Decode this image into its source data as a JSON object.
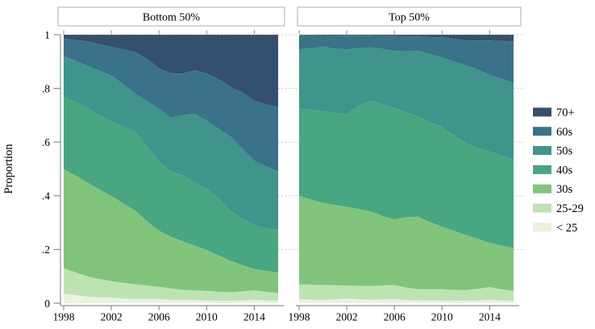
{
  "figure": {
    "kind": "two-panel stacked area chart",
    "background": "#ffffff",
    "axis_color": "#8f8f8f",
    "grid_color": "#bdbdbd",
    "panel_border_color": "#aeaeae"
  },
  "chart_data": {
    "type": "area",
    "stacked": true,
    "ylabel": "Proportion",
    "x": [
      1998,
      1999,
      2000,
      2001,
      2002,
      2003,
      2004,
      2005,
      2006,
      2007,
      2008,
      2009,
      2010,
      2011,
      2012,
      2013,
      2014,
      2015,
      2016
    ],
    "xticks": [
      1998,
      2002,
      2006,
      2010,
      2014
    ],
    "xtick_labels": [
      "1998",
      "2002",
      "2006",
      "2010",
      "2014"
    ],
    "yticks": [
      0,
      0.2,
      0.4,
      0.6,
      0.8,
      1
    ],
    "ytick_labels": [
      "0",
      ".2",
      ".4",
      ".6",
      ".8",
      "1"
    ],
    "ylim": [
      0,
      1
    ],
    "grid": "horizontal-dotted",
    "legend_position": "right-outside",
    "legend_top_to_bottom": [
      "70+",
      "60s",
      "50s",
      "40s",
      "30s",
      "25-29",
      "< 25"
    ],
    "colors": {
      "70+": "#35506e",
      "60s": "#3a7289",
      "50s": "#3f948c",
      "40s": "#48a681",
      "30s": "#80c47c",
      "25-29": "#bee3b3",
      "< 25": "#e9f3de"
    },
    "panels": [
      {
        "title": "Bottom 50%",
        "series": [
          {
            "name": "< 25",
            "values": [
              0.035,
              0.03,
              0.025,
              0.022,
              0.02,
              0.018,
              0.016,
              0.016,
              0.016,
              0.013,
              0.012,
              0.011,
              0.01,
              0.009,
              0.009,
              0.01,
              0.012,
              0.01,
              0.009
            ]
          },
          {
            "name": "25-29",
            "values": [
              0.095,
              0.085,
              0.075,
              0.068,
              0.062,
              0.058,
              0.055,
              0.05,
              0.045,
              0.042,
              0.038,
              0.037,
              0.036,
              0.034,
              0.032,
              0.034,
              0.036,
              0.032,
              0.029
            ]
          },
          {
            "name": "30s",
            "values": [
              0.37,
              0.36,
              0.349,
              0.334,
              0.317,
              0.296,
              0.274,
              0.239,
              0.209,
              0.193,
              0.18,
              0.167,
              0.152,
              0.135,
              0.117,
              0.098,
              0.079,
              0.078,
              0.076
            ]
          },
          {
            "name": "40s",
            "values": [
              0.27,
              0.273,
              0.278,
              0.276,
              0.277,
              0.286,
              0.293,
              0.28,
              0.258,
              0.242,
              0.246,
              0.235,
              0.227,
              0.212,
              0.187,
              0.173,
              0.163,
              0.16,
              0.158
            ]
          },
          {
            "name": "50s",
            "values": [
              0.15,
              0.154,
              0.157,
              0.166,
              0.172,
              0.157,
              0.142,
              0.167,
              0.197,
              0.2,
              0.224,
              0.255,
              0.255,
              0.26,
              0.275,
              0.26,
              0.24,
              0.23,
              0.218
            ]
          },
          {
            "name": "60s",
            "values": [
              0.065,
              0.078,
              0.091,
              0.099,
              0.107,
              0.13,
              0.155,
              0.158,
              0.15,
              0.165,
              0.155,
              0.163,
              0.175,
              0.185,
              0.185,
              0.21,
              0.225,
              0.23,
              0.24
            ]
          },
          {
            "name": "70+",
            "values": [
              0.015,
              0.02,
              0.025,
              0.035,
              0.045,
              0.055,
              0.065,
              0.09,
              0.125,
              0.145,
              0.145,
              0.132,
              0.145,
              0.165,
              0.195,
              0.215,
              0.245,
              0.26,
              0.27
            ]
          }
        ]
      },
      {
        "title": "Top 50%",
        "series": [
          {
            "name": "< 25",
            "values": [
              0.015,
              0.013,
              0.012,
              0.014,
              0.018,
              0.014,
              0.013,
              0.014,
              0.016,
              0.012,
              0.01,
              0.01,
              0.01,
              0.009,
              0.009,
              0.01,
              0.012,
              0.01,
              0.008
            ]
          },
          {
            "name": "25-29",
            "values": [
              0.055,
              0.056,
              0.056,
              0.053,
              0.048,
              0.051,
              0.051,
              0.052,
              0.052,
              0.046,
              0.042,
              0.042,
              0.042,
              0.041,
              0.04,
              0.044,
              0.048,
              0.042,
              0.038
            ]
          },
          {
            "name": "30s",
            "values": [
              0.33,
              0.317,
              0.306,
              0.299,
              0.293,
              0.285,
              0.278,
              0.259,
              0.244,
              0.262,
              0.27,
              0.25,
              0.233,
              0.22,
              0.205,
              0.186,
              0.165,
              0.163,
              0.159
            ]
          },
          {
            "name": "40s",
            "values": [
              0.325,
              0.334,
              0.341,
              0.344,
              0.346,
              0.385,
              0.413,
              0.415,
              0.416,
              0.39,
              0.373,
              0.373,
              0.37,
              0.355,
              0.341,
              0.338,
              0.34,
              0.335,
              0.33
            ]
          },
          {
            "name": "50s",
            "values": [
              0.22,
              0.23,
              0.24,
              0.238,
              0.24,
              0.215,
              0.198,
              0.207,
              0.212,
              0.228,
              0.245,
              0.253,
              0.26,
              0.275,
              0.291,
              0.292,
              0.285,
              0.285,
              0.285
            ]
          },
          {
            "name": "60s",
            "values": [
              0.053,
              0.048,
              0.042,
              0.049,
              0.051,
              0.046,
              0.043,
              0.048,
              0.055,
              0.056,
              0.053,
              0.063,
              0.075,
              0.085,
              0.093,
              0.108,
              0.128,
              0.142,
              0.155
            ]
          },
          {
            "name": "70+",
            "values": [
              0.002,
              0.002,
              0.003,
              0.003,
              0.004,
              0.004,
              0.004,
              0.005,
              0.005,
              0.006,
              0.007,
              0.009,
              0.01,
              0.015,
              0.021,
              0.022,
              0.022,
              0.023,
              0.025
            ]
          }
        ]
      }
    ]
  }
}
